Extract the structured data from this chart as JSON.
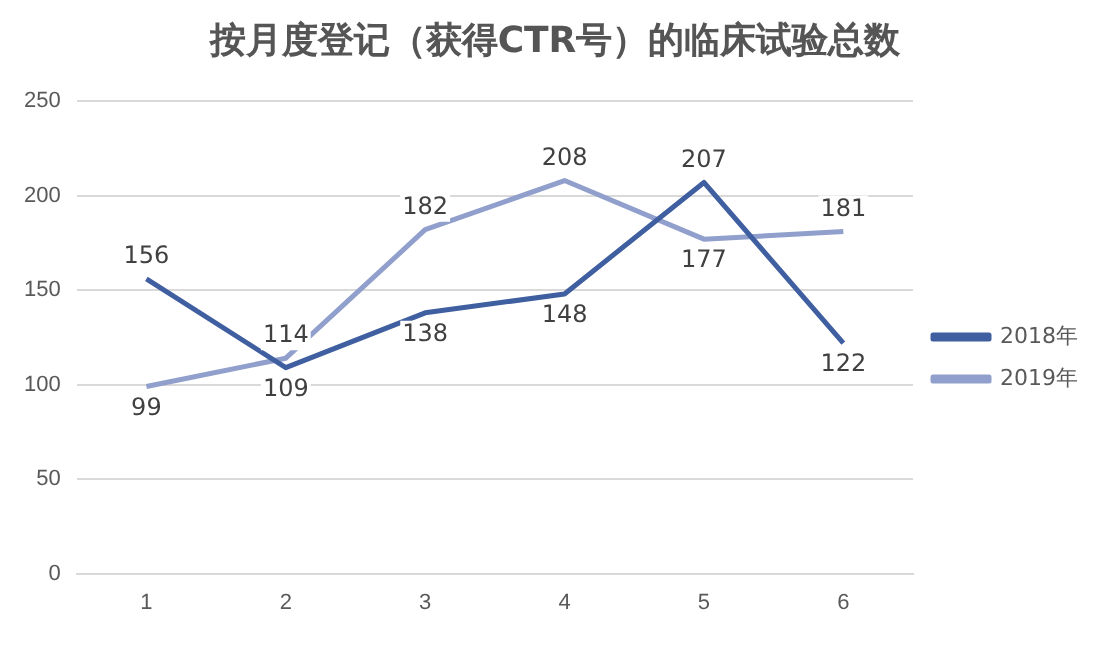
{
  "chart_data": {
    "type": "line",
    "title": "按月度登记（获得CTR号）的临床试验总数",
    "categories": [
      "1",
      "2",
      "3",
      "4",
      "5",
      "6"
    ],
    "series": [
      {
        "name": "2018年",
        "color": "#3f5fa0",
        "values": [
          156,
          109,
          138,
          148,
          207,
          122
        ]
      },
      {
        "name": "2019年",
        "color": "#909fcc",
        "values": [
          99,
          114,
          182,
          208,
          177,
          181
        ]
      }
    ],
    "ylim": [
      0,
      250
    ],
    "yticks": [
      0,
      50,
      100,
      150,
      200,
      250
    ],
    "grid": "y",
    "legend": "right",
    "marker": "none",
    "line_style": "solid",
    "data_labels": true
  }
}
